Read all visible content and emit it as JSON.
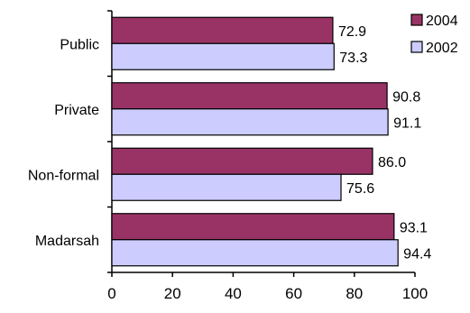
{
  "chart_data": {
    "type": "bar",
    "orientation": "horizontal",
    "categories": [
      "Public",
      "Private",
      "Non-formal",
      "Madarsah"
    ],
    "series": [
      {
        "name": "2004",
        "values": [
          72.9,
          90.8,
          86.0,
          93.1
        ],
        "labels": [
          "72.9",
          "90.8",
          "86.0",
          "93.1"
        ],
        "color": "#993366"
      },
      {
        "name": "2002",
        "values": [
          73.3,
          91.1,
          75.6,
          94.4
        ],
        "labels": [
          "73.3",
          "91.1",
          "75.6",
          "94.4"
        ],
        "color": "#ccccff"
      }
    ],
    "xlim": [
      0,
      100
    ],
    "xticks": [
      0,
      20,
      40,
      60,
      80,
      100
    ],
    "xtick_labels": [
      "0",
      "20",
      "40",
      "60",
      "80",
      "100"
    ],
    "grid": false,
    "legend_position": "top-right",
    "title": "",
    "xlabel": "",
    "ylabel": ""
  }
}
